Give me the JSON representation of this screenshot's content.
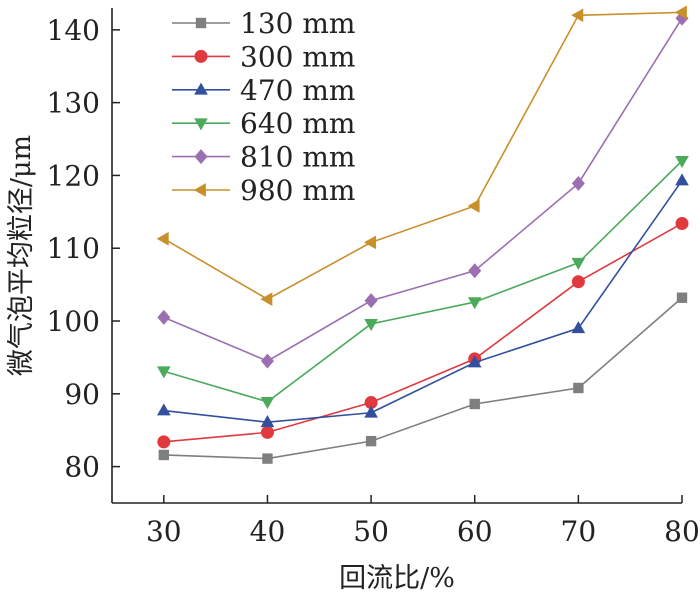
{
  "chart_data": {
    "type": "line",
    "title": "",
    "xlabel": "回流比/%",
    "ylabel": "微气泡平均粒径/μm",
    "x": [
      30,
      40,
      50,
      60,
      70,
      80
    ],
    "xlim": [
      25,
      80
    ],
    "ylim": [
      75,
      143
    ],
    "x_ticks": [
      30,
      40,
      50,
      60,
      70,
      80
    ],
    "y_ticks": [
      80,
      90,
      100,
      110,
      120,
      130,
      140
    ],
    "grid": false,
    "legend_position": "top-left",
    "series": [
      {
        "name": "130 mm",
        "color": "#7f7f7f",
        "marker": "square",
        "values": [
          81.6,
          81.1,
          83.5,
          88.6,
          90.8,
          103.2
        ]
      },
      {
        "name": "300 mm",
        "color": "#e0393e",
        "marker": "circle",
        "values": [
          83.4,
          84.7,
          88.8,
          94.8,
          105.4,
          113.4
        ]
      },
      {
        "name": "470 mm",
        "color": "#33509e",
        "marker": "triangle-up",
        "values": [
          87.7,
          86.1,
          87.4,
          94.3,
          99.0,
          119.3
        ]
      },
      {
        "name": "640 mm",
        "color": "#4caa5c",
        "marker": "triangle-down",
        "values": [
          93.1,
          88.9,
          99.6,
          102.6,
          108.0,
          122.0
        ]
      },
      {
        "name": "810 mm",
        "color": "#9b6fb0",
        "marker": "diamond",
        "values": [
          100.5,
          94.5,
          102.8,
          106.9,
          118.9,
          141.6
        ]
      },
      {
        "name": "980 mm",
        "color": "#c8902a",
        "marker": "triangle-left",
        "values": [
          111.3,
          103.0,
          110.8,
          115.8,
          142.0,
          142.4
        ]
      }
    ]
  }
}
